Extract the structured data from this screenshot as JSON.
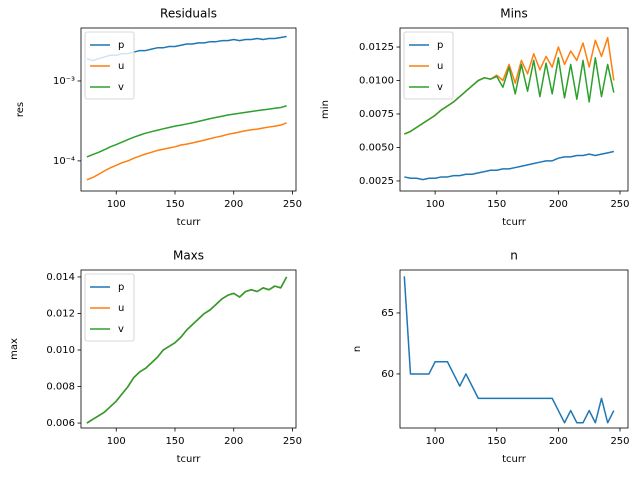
{
  "chart_data": [
    {
      "type": "line",
      "title": "Residuals",
      "xlabel": "tcurr",
      "ylabel": "res",
      "log_y": true,
      "legend": "upper left",
      "x": [
        75,
        80,
        85,
        90,
        95,
        100,
        105,
        110,
        115,
        120,
        125,
        130,
        135,
        140,
        145,
        150,
        155,
        160,
        165,
        170,
        175,
        180,
        185,
        190,
        195,
        200,
        205,
        210,
        215,
        220,
        225,
        230,
        235,
        240,
        245
      ],
      "xlim": [
        70,
        253
      ],
      "ylim": [
        4.2e-05,
        0.0046
      ],
      "xticks": [
        100,
        150,
        200,
        250
      ],
      "yticks": [
        {
          "value": 0.0001,
          "label": "10⁻⁴"
        },
        {
          "value": 0.001,
          "label": "10⁻³"
        }
      ],
      "series": [
        {
          "name": "p",
          "color": "#1f77b4",
          "values": [
            0.0019,
            0.0018,
            0.0019,
            0.002,
            0.0021,
            0.0021,
            0.0022,
            0.0022,
            0.0023,
            0.0024,
            0.0024,
            0.0025,
            0.0026,
            0.0026,
            0.0027,
            0.0027,
            0.0028,
            0.0029,
            0.0029,
            0.003,
            0.003,
            0.0031,
            0.0031,
            0.0032,
            0.0032,
            0.0033,
            0.0032,
            0.0033,
            0.0033,
            0.0034,
            0.0033,
            0.0034,
            0.0034,
            0.0035,
            0.0036
          ]
        },
        {
          "name": "u",
          "color": "#ff7f0e",
          "values": [
            5.8e-05,
            6.2e-05,
            6.8e-05,
            7.5e-05,
            8.2e-05,
            8.8e-05,
            9.5e-05,
            0.0001,
            0.000108,
            0.000115,
            0.000122,
            0.000128,
            0.000135,
            0.00014,
            0.000145,
            0.00015,
            0.000158,
            0.000162,
            0.000168,
            0.000175,
            0.000182,
            0.00019,
            0.000198,
            0.000205,
            0.000215,
            0.000222,
            0.00023,
            0.000238,
            0.000245,
            0.00025,
            0.000258,
            0.000265,
            0.000272,
            0.00028,
            0.0003
          ]
        },
        {
          "name": "v",
          "color": "#2ca02c",
          "values": [
            0.000112,
            0.00012,
            0.000128,
            0.000138,
            0.00015,
            0.00016,
            0.000172,
            0.000185,
            0.000198,
            0.00021,
            0.000222,
            0.000232,
            0.000242,
            0.000252,
            0.000262,
            0.000272,
            0.00028,
            0.00029,
            0.0003,
            0.000312,
            0.000325,
            0.000338,
            0.00035,
            0.000362,
            0.000375,
            0.000385,
            0.000395,
            0.000405,
            0.000415,
            0.000425,
            0.000435,
            0.000445,
            0.000455,
            0.000465,
            0.00049
          ]
        }
      ]
    },
    {
      "type": "line",
      "title": "Mins",
      "xlabel": "tcurr",
      "ylabel": "min",
      "legend": "upper left",
      "x": [
        75,
        80,
        85,
        90,
        95,
        100,
        105,
        110,
        115,
        120,
        125,
        130,
        135,
        140,
        145,
        150,
        155,
        160,
        165,
        170,
        175,
        180,
        185,
        190,
        195,
        200,
        205,
        210,
        215,
        220,
        225,
        230,
        235,
        240,
        245
      ],
      "xlim": [
        71.5,
        256.5
      ],
      "ylim": [
        0.00175,
        0.01392
      ],
      "xticks": [
        100,
        150,
        200,
        250
      ],
      "yticks": [
        0.0025,
        {
          "value": 0.005,
          "label": "0.0050"
        },
        0.0075,
        {
          "value": 0.01,
          "label": "0.0100"
        },
        0.0125
      ],
      "series": [
        {
          "name": "p",
          "color": "#1f77b4",
          "values": [
            0.0028,
            0.0027,
            0.0027,
            0.0026,
            0.0027,
            0.0027,
            0.0028,
            0.0028,
            0.0029,
            0.0029,
            0.003,
            0.003,
            0.0031,
            0.0032,
            0.0033,
            0.0033,
            0.0034,
            0.0034,
            0.0035,
            0.0036,
            0.0037,
            0.0038,
            0.0039,
            0.004,
            0.004,
            0.0042,
            0.0043,
            0.0043,
            0.0044,
            0.0044,
            0.0045,
            0.0044,
            0.0045,
            0.0046,
            0.0047
          ]
        },
        {
          "name": "u",
          "color": "#ff7f0e",
          "values": [
            0.006,
            0.0062,
            0.0065,
            0.0068,
            0.0071,
            0.0074,
            0.0078,
            0.0081,
            0.0084,
            0.0088,
            0.0092,
            0.0096,
            0.01,
            0.0102,
            0.0101,
            0.0104,
            0.01,
            0.0112,
            0.0098,
            0.0115,
            0.0105,
            0.012,
            0.0108,
            0.0118,
            0.011,
            0.0125,
            0.0112,
            0.0122,
            0.0115,
            0.0128,
            0.011,
            0.013,
            0.0118,
            0.0132,
            0.01
          ]
        },
        {
          "name": "v",
          "color": "#2ca02c",
          "values": [
            0.006,
            0.0062,
            0.0065,
            0.0068,
            0.0071,
            0.0074,
            0.0078,
            0.0081,
            0.0084,
            0.0088,
            0.0092,
            0.0096,
            0.01,
            0.0102,
            0.0101,
            0.0103,
            0.0095,
            0.011,
            0.009,
            0.0112,
            0.0092,
            0.0115,
            0.0088,
            0.0113,
            0.009,
            0.0117,
            0.0087,
            0.0112,
            0.0086,
            0.0115,
            0.0084,
            0.0117,
            0.0088,
            0.0112,
            0.0091
          ]
        }
      ]
    },
    {
      "type": "line",
      "title": "Maxs",
      "xlabel": "tcurr",
      "ylabel": "max",
      "legend": "upper left",
      "x": [
        75,
        80,
        85,
        90,
        95,
        100,
        105,
        110,
        115,
        120,
        125,
        130,
        135,
        140,
        145,
        150,
        155,
        160,
        165,
        170,
        175,
        180,
        185,
        190,
        195,
        200,
        205,
        210,
        215,
        220,
        225,
        230,
        235,
        240,
        245
      ],
      "xlim": [
        70,
        253
      ],
      "ylim": [
        0.00573,
        0.01438
      ],
      "xticks": [
        100,
        150,
        200,
        250
      ],
      "yticks": [
        0.006,
        0.008,
        {
          "value": 0.01,
          "label": "0.010"
        },
        0.012,
        0.014
      ],
      "series": [
        {
          "name": "p",
          "color": "#1f77b4",
          "values": [
            0.006,
            0.0062,
            0.0064,
            0.0066,
            0.0069,
            0.0072,
            0.0076,
            0.008,
            0.0085,
            0.0088,
            0.009,
            0.0093,
            0.0096,
            0.01,
            0.0102,
            0.0104,
            0.0107,
            0.0111,
            0.0114,
            0.0117,
            0.012,
            0.0122,
            0.0125,
            0.0128,
            0.013,
            0.0131,
            0.0129,
            0.0132,
            0.0133,
            0.0132,
            0.0134,
            0.0133,
            0.0135,
            0.0134,
            0.014
          ]
        },
        {
          "name": "u",
          "color": "#ff7f0e",
          "values": [
            0.006,
            0.0062,
            0.0064,
            0.0066,
            0.0069,
            0.0072,
            0.0076,
            0.008,
            0.0085,
            0.0088,
            0.009,
            0.0093,
            0.0096,
            0.01,
            0.0102,
            0.0104,
            0.0107,
            0.0111,
            0.0114,
            0.0117,
            0.012,
            0.0122,
            0.0125,
            0.0128,
            0.013,
            0.0131,
            0.0129,
            0.0132,
            0.0133,
            0.0132,
            0.0134,
            0.0133,
            0.0135,
            0.0134,
            0.014
          ]
        },
        {
          "name": "v",
          "color": "#2ca02c",
          "values": [
            0.006,
            0.0062,
            0.0064,
            0.0066,
            0.0069,
            0.0072,
            0.0076,
            0.008,
            0.0085,
            0.0088,
            0.009,
            0.0093,
            0.0096,
            0.01,
            0.0102,
            0.0104,
            0.0107,
            0.0111,
            0.0114,
            0.0117,
            0.012,
            0.0122,
            0.0125,
            0.0128,
            0.013,
            0.0131,
            0.0129,
            0.0132,
            0.0133,
            0.0132,
            0.0134,
            0.0133,
            0.0135,
            0.0134,
            0.014
          ]
        }
      ]
    },
    {
      "type": "line",
      "title": "n",
      "xlabel": "tcurr",
      "ylabel": "n",
      "x": [
        75,
        80,
        85,
        90,
        95,
        100,
        105,
        110,
        115,
        120,
        125,
        130,
        135,
        140,
        145,
        150,
        155,
        160,
        165,
        170,
        175,
        180,
        185,
        190,
        195,
        200,
        205,
        210,
        215,
        220,
        225,
        230,
        235,
        240,
        245
      ],
      "xlim": [
        71.5,
        256.5
      ],
      "ylim": [
        55.57,
        68.52
      ],
      "xticks": [
        100,
        150,
        200,
        250
      ],
      "yticks": [
        60,
        65
      ],
      "series": [
        {
          "color": "#1f77b4",
          "values": [
            68,
            60,
            60,
            60,
            60,
            61,
            61,
            61,
            60,
            59,
            60,
            59,
            58,
            58,
            58,
            58,
            58,
            58,
            58,
            58,
            58,
            58,
            58,
            58,
            58,
            57,
            56,
            57,
            56,
            56,
            57,
            56,
            58,
            56,
            57
          ]
        }
      ]
    }
  ]
}
